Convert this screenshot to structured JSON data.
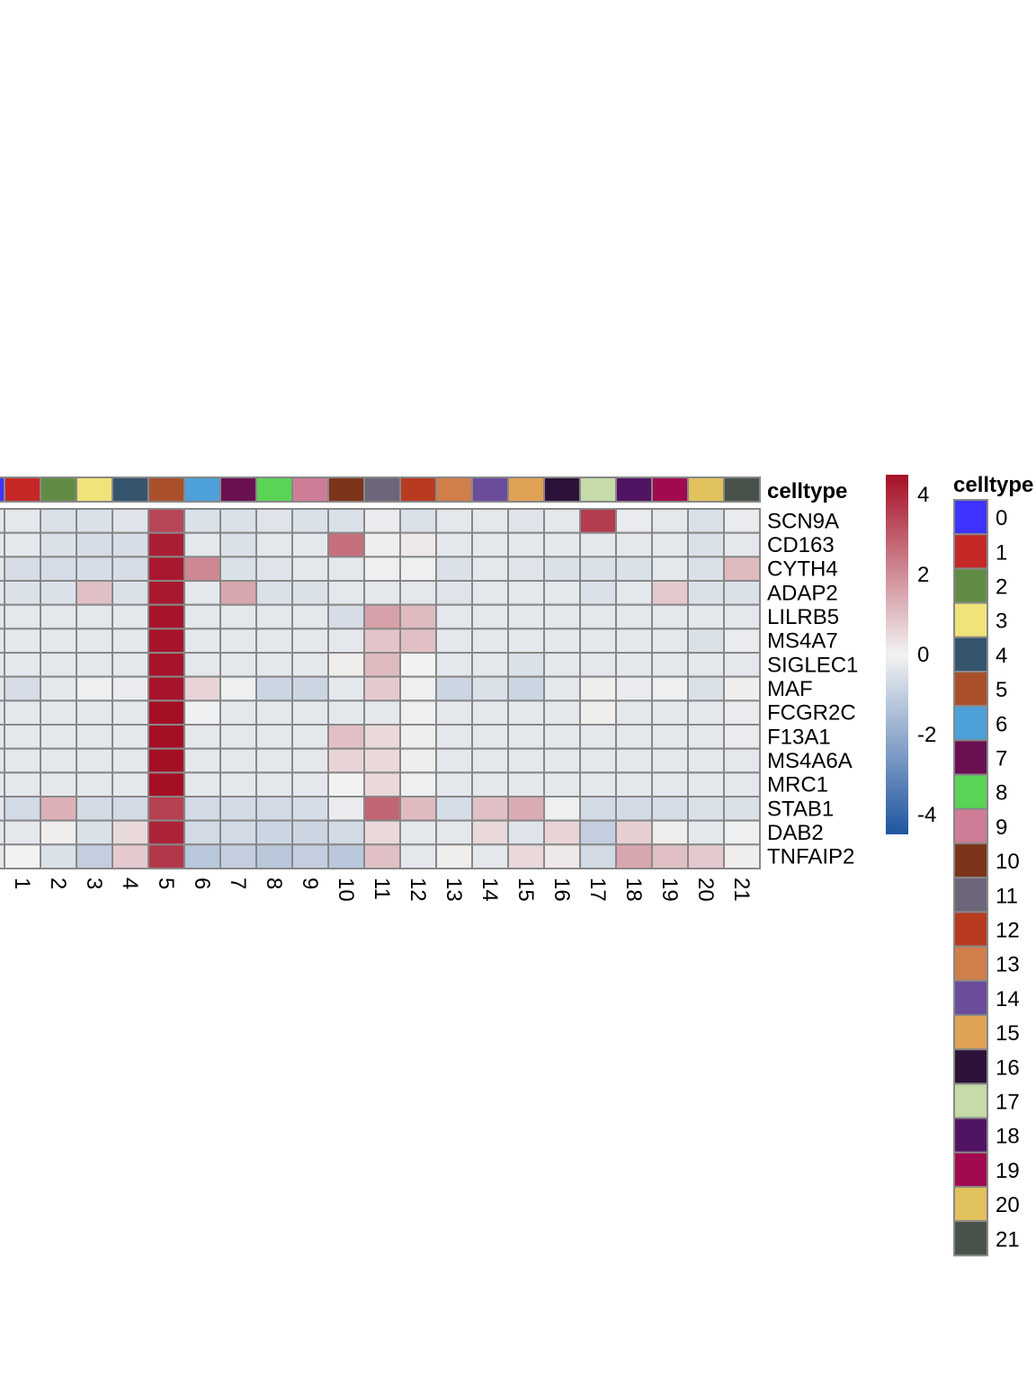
{
  "chart_data": {
    "type": "heatmap",
    "annotation_title": "celltype",
    "legend_title": "celltype",
    "color_scale": {
      "min": -4.5,
      "max": 4.5,
      "ticks": [
        4,
        2,
        0,
        -2,
        -4
      ],
      "tick_labels": [
        "4",
        "2",
        "0",
        "-2",
        "-4"
      ],
      "low_color": "#1f55a0",
      "mid_color": "#f2f2f2",
      "high_color": "#a50f26"
    },
    "categories": [
      "1",
      "2",
      "3",
      "4",
      "5",
      "6",
      "7",
      "8",
      "9",
      "10",
      "11",
      "12",
      "13",
      "14",
      "15",
      "16",
      "17",
      "18",
      "19",
      "20",
      "21"
    ],
    "rows": [
      "SCN9A",
      "CD163",
      "CYTH4",
      "ADAP2",
      "LILRB5",
      "MS4A7",
      "SIGLEC1",
      "MAF",
      "FCGR2C",
      "F13A1",
      "MS4A6A",
      "MRC1",
      "STAB1",
      "DAB2",
      "TNFAIP2"
    ],
    "values": [
      [
        -0.3,
        -0.5,
        -0.5,
        -0.4,
        3.4,
        -0.5,
        -0.5,
        -0.4,
        -0.5,
        -0.5,
        -0.2,
        -0.5,
        -0.3,
        -0.3,
        -0.4,
        -0.3,
        3.6,
        -0.2,
        -0.3,
        -0.5,
        -0.2
      ],
      [
        -0.3,
        -0.5,
        -0.6,
        -0.6,
        4.2,
        -0.3,
        -0.5,
        -0.3,
        -0.3,
        2.6,
        0.1,
        0.2,
        -0.3,
        -0.3,
        -0.3,
        -0.3,
        -0.3,
        -0.3,
        -0.3,
        -0.5,
        -0.3
      ],
      [
        -0.6,
        -0.6,
        -0.6,
        -0.6,
        4.3,
        2.1,
        -0.5,
        -0.4,
        -0.3,
        -0.3,
        -0.1,
        -0.1,
        -0.5,
        -0.3,
        -0.4,
        -0.5,
        -0.5,
        -0.5,
        -0.3,
        -0.5,
        1.1
      ],
      [
        -0.5,
        -0.5,
        1.0,
        -0.5,
        4.3,
        -0.3,
        1.5,
        -0.5,
        -0.5,
        -0.3,
        -0.3,
        -0.3,
        -0.4,
        -0.3,
        -0.3,
        -0.3,
        -0.5,
        -0.3,
        0.8,
        -0.5,
        -0.5
      ],
      [
        -0.3,
        -0.3,
        -0.3,
        -0.3,
        4.4,
        -0.3,
        -0.3,
        -0.3,
        -0.3,
        -0.6,
        1.6,
        1.1,
        -0.3,
        -0.3,
        -0.3,
        -0.3,
        -0.3,
        -0.3,
        -0.3,
        -0.3,
        -0.3
      ],
      [
        -0.3,
        -0.3,
        -0.3,
        -0.3,
        4.4,
        -0.3,
        -0.3,
        -0.3,
        -0.3,
        -0.3,
        0.9,
        1.0,
        -0.3,
        -0.3,
        -0.3,
        -0.3,
        -0.3,
        -0.3,
        -0.3,
        -0.5,
        -0.2
      ],
      [
        -0.3,
        -0.3,
        -0.3,
        -0.3,
        4.4,
        -0.3,
        -0.3,
        -0.3,
        -0.3,
        0.1,
        1.1,
        0.0,
        -0.3,
        -0.3,
        -0.5,
        -0.3,
        -0.3,
        -0.3,
        -0.3,
        -0.3,
        -0.3
      ],
      [
        -0.6,
        -0.3,
        -0.1,
        -0.2,
        4.4,
        0.6,
        -0.1,
        -0.8,
        -0.8,
        -0.3,
        0.8,
        -0.1,
        -0.8,
        -0.5,
        -0.8,
        -0.3,
        0.1,
        -0.2,
        -0.1,
        -0.5,
        0.1
      ],
      [
        -0.3,
        -0.3,
        -0.3,
        -0.3,
        4.5,
        -0.1,
        -0.3,
        -0.3,
        -0.3,
        -0.3,
        -0.3,
        -0.1,
        -0.3,
        -0.3,
        -0.3,
        -0.3,
        0.1,
        -0.3,
        -0.3,
        -0.3,
        -0.2
      ],
      [
        -0.3,
        -0.3,
        -0.3,
        -0.3,
        4.5,
        -0.3,
        -0.3,
        -0.3,
        -0.3,
        1.0,
        0.5,
        0.1,
        -0.3,
        -0.3,
        -0.3,
        -0.3,
        -0.3,
        -0.3,
        -0.3,
        -0.3,
        -0.2
      ],
      [
        -0.3,
        -0.3,
        -0.3,
        -0.3,
        4.5,
        -0.3,
        -0.3,
        -0.3,
        -0.3,
        0.6,
        0.5,
        0.1,
        -0.3,
        -0.3,
        -0.3,
        -0.3,
        -0.3,
        -0.3,
        -0.3,
        -0.3,
        -0.3
      ],
      [
        -0.3,
        -0.3,
        -0.3,
        -0.3,
        4.5,
        -0.3,
        -0.3,
        -0.3,
        -0.3,
        0.0,
        0.5,
        -0.1,
        -0.3,
        -0.3,
        -0.3,
        -0.3,
        -0.3,
        -0.3,
        -0.3,
        -0.3,
        -0.3
      ],
      [
        -0.7,
        1.3,
        -0.7,
        -0.7,
        3.5,
        -0.7,
        -0.7,
        -0.7,
        -0.6,
        -0.2,
        2.8,
        1.1,
        -0.6,
        1.0,
        1.4,
        -0.1,
        -0.7,
        -0.7,
        -0.6,
        -0.5,
        -0.5
      ],
      [
        -0.3,
        0.1,
        -0.5,
        0.5,
        4.1,
        -0.7,
        -0.7,
        -0.8,
        -0.8,
        -0.7,
        0.5,
        -0.3,
        -0.3,
        0.5,
        -0.4,
        0.6,
        -1.0,
        0.7,
        0.1,
        -0.3,
        -0.1
      ],
      [
        0.0,
        -0.5,
        -1.0,
        0.8,
        3.7,
        -1.2,
        -1.0,
        -1.2,
        -1.0,
        -1.2,
        1.0,
        -0.3,
        0.1,
        -0.3,
        0.5,
        0.2,
        -0.7,
        1.5,
        1.0,
        0.8,
        0.1
      ]
    ],
    "legend_entries": [
      {
        "label": "0",
        "color": "#3f33ff"
      },
      {
        "label": "1",
        "color": "#c62828"
      },
      {
        "label": "2",
        "color": "#628c46"
      },
      {
        "label": "3",
        "color": "#efe37a"
      },
      {
        "label": "4",
        "color": "#35546e"
      },
      {
        "label": "5",
        "color": "#a9502a"
      },
      {
        "label": "6",
        "color": "#4ea0d9"
      },
      {
        "label": "7",
        "color": "#6b1052"
      },
      {
        "label": "8",
        "color": "#5ad455"
      },
      {
        "label": "9",
        "color": "#cd7d95"
      },
      {
        "label": "10",
        "color": "#7c341b"
      },
      {
        "label": "11",
        "color": "#6d6579"
      },
      {
        "label": "12",
        "color": "#b83a1f"
      },
      {
        "label": "13",
        "color": "#d07e4a"
      },
      {
        "label": "14",
        "color": "#6a4c9a"
      },
      {
        "label": "15",
        "color": "#e0a254"
      },
      {
        "label": "16",
        "color": "#2c1238"
      },
      {
        "label": "17",
        "color": "#c5dba8"
      },
      {
        "label": "18",
        "color": "#511463"
      },
      {
        "label": "19",
        "color": "#a3094e"
      },
      {
        "label": "20",
        "color": "#e1c15c"
      },
      {
        "label": "21",
        "color": "#48524a"
      }
    ]
  }
}
